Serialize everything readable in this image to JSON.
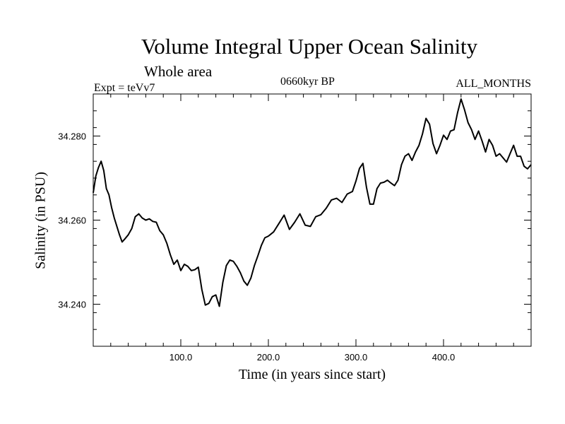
{
  "chart_data": {
    "type": "line",
    "title": "Volume Integral Upper Ocean Salinity",
    "subtitle": "Whole area",
    "experiment": "Expt = teVv7",
    "period": "0660kyr BP",
    "months": "ALL_MONTHS",
    "xlabel": "Time (in years since start)",
    "ylabel": "Salinity (in PSU)",
    "xlim": [
      0,
      500
    ],
    "ylim": [
      34.23,
      34.29
    ],
    "x_ticks": [
      {
        "value": 100,
        "label": "100.0"
      },
      {
        "value": 200,
        "label": "200.0"
      },
      {
        "value": 300,
        "label": "300.0"
      },
      {
        "value": 400,
        "label": "400.0"
      }
    ],
    "y_ticks": [
      {
        "value": 34.24,
        "label": "34.240"
      },
      {
        "value": 34.26,
        "label": "34.260"
      },
      {
        "value": 34.28,
        "label": "34.280"
      }
    ],
    "grid": false,
    "line_color": "#000000",
    "series": [
      {
        "x": [
          0,
          3,
          6,
          9,
          12,
          15,
          18,
          21,
          24,
          27,
          30,
          33,
          36,
          40,
          44,
          48,
          52,
          56,
          60,
          64,
          68,
          72,
          76,
          80,
          84,
          88,
          92,
          96,
          100,
          104,
          108,
          112,
          116,
          120,
          124,
          128,
          132,
          136,
          140,
          144,
          148,
          152,
          156,
          160,
          164,
          168,
          172,
          176,
          180,
          184,
          188,
          192,
          196,
          200,
          206,
          212,
          218,
          224,
          230,
          236,
          242,
          248,
          254,
          260,
          266,
          272,
          278,
          284,
          290,
          296,
          300,
          304,
          308,
          312,
          316,
          320,
          324,
          328,
          332,
          336,
          340,
          344,
          348,
          352,
          356,
          360,
          364,
          368,
          372,
          376,
          380,
          384,
          388,
          392,
          396,
          400,
          404,
          408,
          412,
          416,
          420,
          424,
          428,
          432,
          436,
          440,
          444,
          448,
          452,
          456,
          460,
          464,
          468,
          472,
          476,
          480,
          484,
          488,
          492,
          496,
          500
        ],
        "y": [
          34.2665,
          34.2705,
          34.2725,
          34.274,
          34.2718,
          34.2675,
          34.266,
          34.263,
          34.2605,
          34.2585,
          34.2565,
          34.2548,
          34.2555,
          34.2565,
          34.258,
          34.2608,
          34.2615,
          34.2605,
          34.26,
          34.2603,
          34.2597,
          34.2595,
          34.2575,
          34.2565,
          34.2545,
          34.2518,
          34.2495,
          34.2505,
          34.248,
          34.2495,
          34.249,
          34.248,
          34.2482,
          34.2488,
          34.2435,
          34.2398,
          34.2402,
          34.2418,
          34.2422,
          34.2395,
          34.2452,
          34.2492,
          34.2505,
          34.2502,
          34.249,
          34.2475,
          34.2455,
          34.2445,
          34.2462,
          34.2492,
          34.2515,
          34.254,
          34.2558,
          34.2562,
          34.2572,
          34.2592,
          34.2612,
          34.2578,
          34.2595,
          34.2615,
          34.2588,
          34.2585,
          34.2608,
          34.2613,
          34.2628,
          34.2648,
          34.2652,
          34.2642,
          34.2662,
          34.2668,
          34.2693,
          34.2723,
          34.2735,
          34.2678,
          34.2638,
          34.2638,
          34.2675,
          34.2688,
          34.269,
          34.2695,
          34.2688,
          34.2682,
          34.2695,
          34.2732,
          34.2752,
          34.2758,
          34.2742,
          34.2762,
          34.2778,
          34.2805,
          34.2842,
          34.2828,
          34.2782,
          34.2758,
          34.2778,
          34.2802,
          34.2792,
          34.2812,
          34.2815,
          34.2855,
          34.2888,
          34.2862,
          34.2832,
          34.2815,
          34.2792,
          34.2812,
          34.2788,
          34.2762,
          34.2792,
          34.2778,
          34.2752,
          34.2758,
          34.2748,
          34.2738,
          34.2758,
          34.2778,
          34.2752,
          34.2752,
          34.2728,
          34.2722,
          34.2732
        ]
      }
    ]
  }
}
